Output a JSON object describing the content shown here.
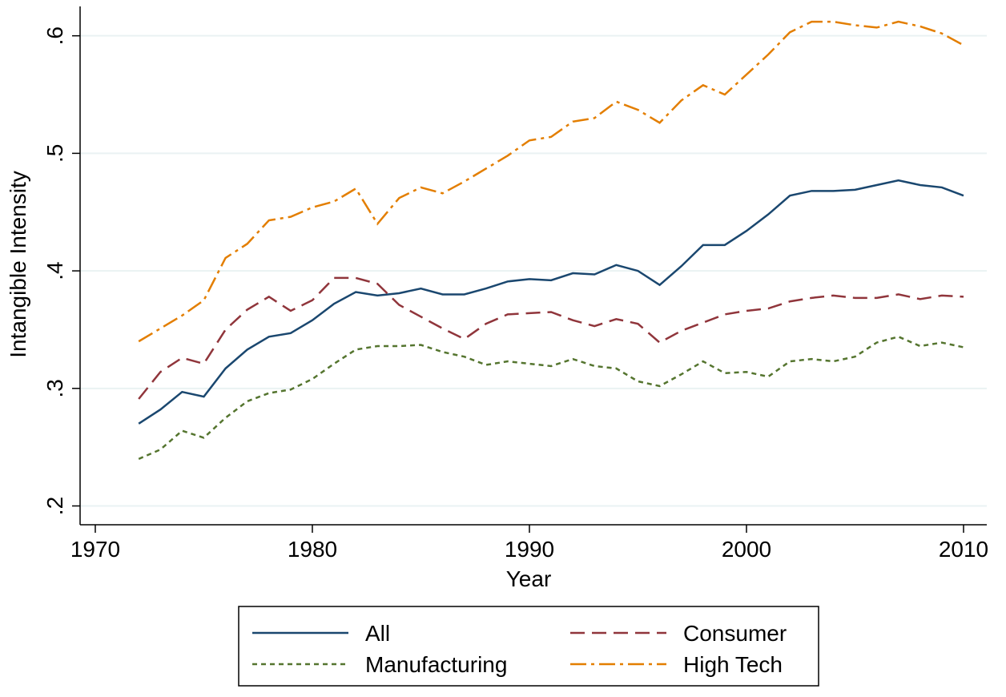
{
  "chart_data": {
    "type": "line",
    "xlabel": "Year",
    "ylabel": "Intangible Intensity",
    "x": [
      1972,
      1973,
      1974,
      1975,
      1976,
      1977,
      1978,
      1979,
      1980,
      1981,
      1982,
      1983,
      1984,
      1985,
      1986,
      1987,
      1988,
      1989,
      1990,
      1991,
      1992,
      1993,
      1994,
      1995,
      1996,
      1997,
      1998,
      1999,
      2000,
      2001,
      2002,
      2003,
      2004,
      2005,
      2006,
      2007,
      2008,
      2009,
      2010
    ],
    "series": [
      {
        "name": "All",
        "color": "#1a476f",
        "style": "solid",
        "values": [
          0.27,
          0.282,
          0.297,
          0.293,
          0.317,
          0.333,
          0.344,
          0.347,
          0.358,
          0.372,
          0.382,
          0.379,
          0.381,
          0.385,
          0.38,
          0.38,
          0.385,
          0.391,
          0.393,
          0.392,
          0.398,
          0.397,
          0.405,
          0.4,
          0.388,
          0.404,
          0.422,
          0.422,
          0.434,
          0.448,
          0.464,
          0.468,
          0.468,
          0.469,
          0.473,
          0.477,
          0.473,
          0.471,
          0.464
        ]
      },
      {
        "name": "Consumer",
        "color": "#90353b",
        "style": "dashed",
        "values": [
          0.291,
          0.314,
          0.326,
          0.321,
          0.35,
          0.367,
          0.378,
          0.366,
          0.375,
          0.394,
          0.394,
          0.389,
          0.371,
          0.361,
          0.351,
          0.342,
          0.355,
          0.363,
          0.364,
          0.365,
          0.358,
          0.353,
          0.359,
          0.355,
          0.339,
          0.349,
          0.356,
          0.363,
          0.366,
          0.368,
          0.374,
          0.377,
          0.379,
          0.377,
          0.377,
          0.38,
          0.376,
          0.379,
          0.378
        ]
      },
      {
        "name": "Manufacturing",
        "color": "#55752f",
        "style": "dotted",
        "values": [
          0.24,
          0.248,
          0.264,
          0.258,
          0.275,
          0.289,
          0.296,
          0.299,
          0.308,
          0.321,
          0.333,
          0.336,
          0.336,
          0.337,
          0.331,
          0.327,
          0.32,
          0.323,
          0.321,
          0.319,
          0.325,
          0.319,
          0.317,
          0.306,
          0.302,
          0.312,
          0.323,
          0.313,
          0.314,
          0.31,
          0.323,
          0.325,
          0.323,
          0.327,
          0.339,
          0.344,
          0.336,
          0.339,
          0.335
        ]
      },
      {
        "name": "High Tech",
        "color": "#e37e00",
        "style": "dashdot",
        "values": [
          0.34,
          0.351,
          0.362,
          0.375,
          0.411,
          0.423,
          0.443,
          0.446,
          0.454,
          0.459,
          0.47,
          0.44,
          0.462,
          0.471,
          0.466,
          0.476,
          0.487,
          0.498,
          0.511,
          0.514,
          0.527,
          0.53,
          0.544,
          0.537,
          0.526,
          0.545,
          0.558,
          0.55,
          0.567,
          0.584,
          0.603,
          0.612,
          0.612,
          0.609,
          0.607,
          0.612,
          0.608,
          0.602,
          0.592
        ]
      }
    ],
    "xlim": [
      1969.3,
      2011.07
    ],
    "xticks": [
      1970,
      1980,
      1990,
      2000,
      2010
    ],
    "ylim": [
      0.184,
      0.625
    ],
    "yticks": [
      {
        "value": 0.2,
        "label": ".2"
      },
      {
        "value": 0.3,
        "label": ".3"
      },
      {
        "value": 0.4,
        "label": ".4"
      },
      {
        "value": 0.5,
        "label": ".5"
      },
      {
        "value": 0.6,
        "label": ".6"
      }
    ],
    "grid": true,
    "legend": "bottom"
  }
}
